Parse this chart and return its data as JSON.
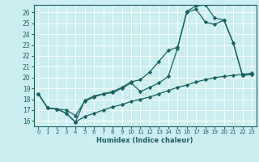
{
  "title": "",
  "xlabel": "Humidex (Indice chaleur)",
  "bg_color": "#cceef0",
  "line_color": "#1a6060",
  "grid_color": "#ffffff",
  "xlim": [
    -0.5,
    23.5
  ],
  "ylim": [
    15.5,
    26.7
  ],
  "xticks": [
    0,
    1,
    2,
    3,
    4,
    5,
    6,
    7,
    8,
    9,
    10,
    11,
    12,
    13,
    14,
    15,
    16,
    17,
    18,
    19,
    20,
    21,
    22,
    23
  ],
  "yticks": [
    16,
    17,
    18,
    19,
    20,
    21,
    22,
    23,
    24,
    25,
    26
  ],
  "line1_x": [
    0,
    1,
    2,
    3,
    4,
    5,
    6,
    7,
    8,
    9,
    10,
    11,
    12,
    13,
    14,
    15,
    16,
    17,
    18,
    19,
    20,
    21,
    22,
    23
  ],
  "line1_y": [
    18.5,
    17.2,
    17.1,
    16.7,
    15.9,
    17.9,
    18.3,
    18.5,
    18.7,
    19.1,
    19.6,
    19.8,
    20.5,
    21.5,
    22.5,
    22.8,
    26.0,
    26.3,
    25.1,
    24.9,
    25.3,
    23.2,
    20.2,
    20.3
  ],
  "line2_x": [
    0,
    1,
    2,
    3,
    4,
    5,
    6,
    7,
    8,
    9,
    10,
    11,
    12,
    13,
    14,
    15,
    16,
    17,
    18,
    19,
    20,
    21,
    22,
    23
  ],
  "line2_y": [
    18.5,
    17.2,
    17.1,
    17.0,
    16.5,
    17.8,
    18.2,
    18.5,
    18.6,
    19.0,
    19.5,
    18.7,
    19.1,
    19.5,
    20.1,
    22.7,
    26.1,
    26.6,
    26.7,
    25.5,
    25.3,
    23.2,
    20.2,
    20.3
  ],
  "line3_x": [
    0,
    1,
    2,
    3,
    4,
    5,
    6,
    7,
    8,
    9,
    10,
    11,
    12,
    13,
    14,
    15,
    16,
    17,
    18,
    19,
    20,
    21,
    22,
    23
  ],
  "line3_y": [
    18.5,
    17.2,
    17.1,
    16.7,
    15.9,
    16.4,
    16.7,
    17.0,
    17.3,
    17.5,
    17.8,
    18.0,
    18.2,
    18.5,
    18.8,
    19.1,
    19.3,
    19.6,
    19.8,
    20.0,
    20.1,
    20.2,
    20.3,
    20.4
  ]
}
